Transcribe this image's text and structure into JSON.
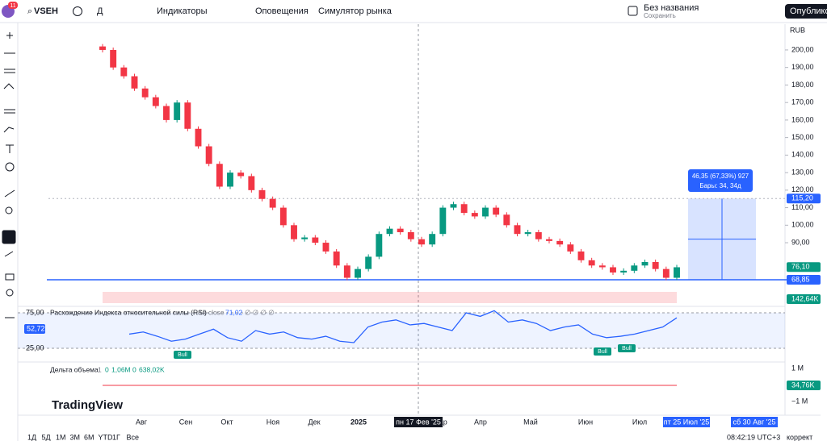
{
  "toolbar": {
    "badge": "11",
    "symbol": "VSEH",
    "interval": "Д",
    "indicators": "Индикаторы",
    "alerts": "Оповещения",
    "replay": "Симулятор рынка",
    "layout_name": "Без названия",
    "save": "Сохранить",
    "publish": "Опубликов"
  },
  "price_pane": {
    "currency": "RUB",
    "ylim": [
      54.6,
      214.7
    ],
    "yticks": [
      {
        "value": 200,
        "label": "200,00"
      },
      {
        "value": 190,
        "label": "190,00"
      },
      {
        "value": 180,
        "label": "180,00"
      },
      {
        "value": 170,
        "label": "170,00"
      },
      {
        "value": 160,
        "label": "160,00"
      },
      {
        "value": 150,
        "label": "150,00"
      },
      {
        "value": 140,
        "label": "140,00"
      },
      {
        "value": 130,
        "label": "130,00"
      },
      {
        "value": 120,
        "label": "120,00"
      },
      {
        "value": 110,
        "label": "110,00"
      },
      {
        "value": 100,
        "label": "100,00"
      },
      {
        "value": 90,
        "label": "90,00"
      }
    ],
    "closes": [
      200,
      190,
      185,
      178,
      173,
      168,
      160,
      170,
      155,
      145,
      135,
      122,
      130,
      128,
      120,
      115,
      110,
      100,
      92,
      93,
      90,
      85,
      77,
      70,
      75,
      82,
      95,
      98,
      96,
      92,
      89,
      95,
      110,
      112,
      107,
      105,
      110,
      106,
      100,
      95,
      96,
      92,
      91,
      89,
      85,
      80,
      77,
      76,
      73,
      74,
      77,
      79,
      75,
      70,
      76
    ],
    "up_color": "#089981",
    "down_color": "#f23645",
    "support": {
      "value": 68.85,
      "label": "68,85"
    },
    "last": {
      "value": 76.1,
      "label": "76,10"
    },
    "measure": {
      "top": {
        "value": 115.2,
        "label": "115,20"
      },
      "bottom": 68.85,
      "line1": "46,35 (67,33%) 927",
      "line2": "Бары: 34, 34д"
    },
    "volume_label": "142,64K"
  },
  "rsi_pane": {
    "title": "Расхождение Индекса относительной силы (RSI)",
    "params": "14 close",
    "value": "71,02",
    "extra": "∅ ∅ ∅ ∅",
    "current": "52,72",
    "ylim": [
      8,
      84.1
    ],
    "band": [
      25,
      75
    ],
    "yticks": [
      {
        "value": 75,
        "label": "75,00"
      },
      {
        "value": 25,
        "label": "25,00"
      }
    ],
    "values": [
      45,
      48,
      42,
      35,
      38,
      45,
      52,
      40,
      35,
      50,
      45,
      48,
      40,
      38,
      42,
      35,
      33,
      55,
      62,
      65,
      58,
      60,
      55,
      50,
      75,
      70,
      78,
      62,
      65,
      60,
      50,
      55,
      58,
      45,
      40,
      42,
      45,
      50,
      55,
      68
    ],
    "divergences": [
      "Bull",
      "Bull",
      "Bull"
    ]
  },
  "delta_pane": {
    "title": "Дельта объема",
    "p1": "1",
    "p2": "0",
    "p3": "1,06M",
    "p4": "0",
    "p5": "638,02K",
    "top": "1 M",
    "bottom": "−1 M",
    "current": "34,76K"
  },
  "logo": "TradingView",
  "time_axis": {
    "months": [
      "Авг",
      "Сен",
      "Окт",
      "Ноя",
      "Дек",
      "2025",
      "Мар",
      "Апр",
      "Май",
      "Июн",
      "Июл"
    ],
    "crosshair": "пн 17 Фев '25",
    "range_start": "пт 25 Июл '25",
    "range_end": "сб 30 Авг '25"
  },
  "bottom_bar": {
    "ranges": [
      "1Д",
      "5Д",
      "1М",
      "3М",
      "6М",
      "YTD",
      "1Г",
      "Все"
    ],
    "clock": "08:42:19 UTC+3",
    "adjust": "коррект"
  }
}
